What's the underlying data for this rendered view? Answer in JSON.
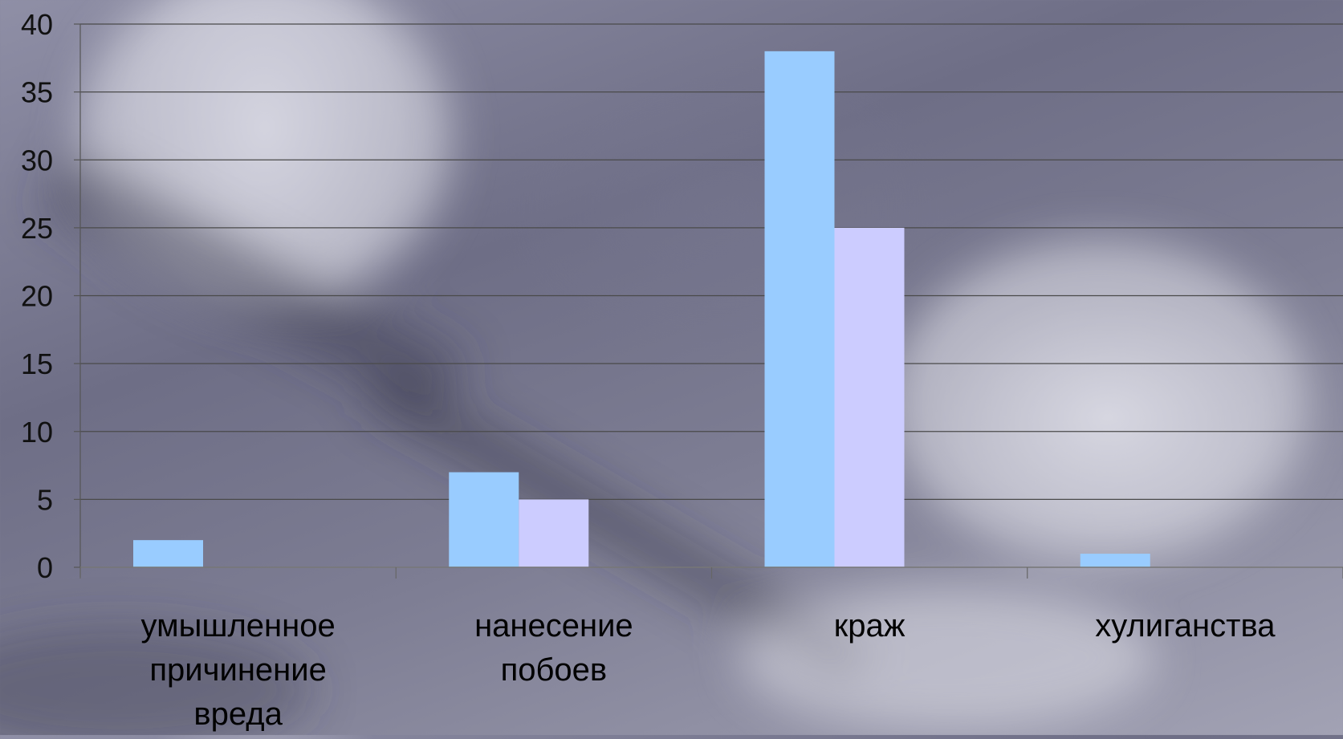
{
  "chart_data": {
    "type": "bar",
    "categories": [
      [
        "умышленное",
        "причинение",
        "вреда"
      ],
      [
        "нанесение",
        "побоев"
      ],
      [
        "краж"
      ],
      [
        "хулиганства"
      ]
    ],
    "series": [
      {
        "values": [
          2,
          7,
          38,
          1
        ],
        "color": "#99ccff"
      },
      {
        "values": [
          0,
          5,
          25,
          0
        ],
        "color": "#ccccff"
      }
    ],
    "ylim": [
      0,
      40
    ],
    "yticks": [
      0,
      5,
      10,
      15,
      20,
      25,
      30,
      35,
      40
    ],
    "grid": true,
    "legend": "none"
  }
}
